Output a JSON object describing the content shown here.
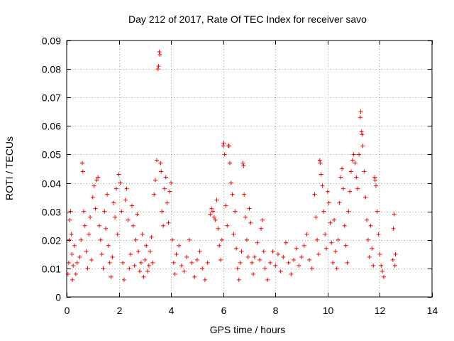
{
  "chart_data": {
    "type": "scatter",
    "title": "Day 212 of 2017, Rate Of TEC Index for receiver savo",
    "xlabel": "GPS time / hours",
    "ylabel": "ROTI / TECUs",
    "xlim": [
      0,
      14
    ],
    "ylim": [
      0,
      0.09
    ],
    "x_ticks": [
      0,
      2,
      4,
      6,
      8,
      10,
      12,
      14
    ],
    "y_ticks": [
      0,
      0.01,
      0.02,
      0.03,
      0.04,
      0.05,
      0.06,
      0.07,
      0.08,
      0.09
    ],
    "x_tick_labels": [
      "0",
      "2",
      "4",
      "6",
      "8",
      "10",
      "12",
      "14"
    ],
    "y_tick_labels": [
      "0",
      "0.01",
      "0.02",
      "0.03",
      "0.04",
      "0.05",
      "0.06",
      "0.07",
      "0.08",
      "0.09"
    ],
    "grid": true,
    "marker": "+",
    "marker_color": "#ff0000",
    "series": [
      {
        "name": "ROTI",
        "points": [
          [
            0.05,
            0.008
          ],
          [
            0.08,
            0.012
          ],
          [
            0.1,
            0.02
          ],
          [
            0.12,
            0.027
          ],
          [
            0.15,
            0.03
          ],
          [
            0.18,
            0.022
          ],
          [
            0.2,
            0.015
          ],
          [
            0.22,
            0.006
          ],
          [
            0.25,
            0.011
          ],
          [
            0.3,
            0.018
          ],
          [
            0.35,
            0.008
          ],
          [
            0.4,
            0.012
          ],
          [
            0.5,
            0.014
          ],
          [
            0.55,
            0.02
          ],
          [
            0.6,
            0.047
          ],
          [
            0.62,
            0.044
          ],
          [
            0.65,
            0.03
          ],
          [
            0.7,
            0.025
          ],
          [
            0.75,
            0.016
          ],
          [
            0.8,
            0.01
          ],
          [
            0.85,
            0.022
          ],
          [
            0.9,
            0.028
          ],
          [
            0.95,
            0.013
          ],
          [
            1.0,
            0.035
          ],
          [
            1.05,
            0.039
          ],
          [
            1.1,
            0.031
          ],
          [
            1.15,
            0.041
          ],
          [
            1.2,
            0.042
          ],
          [
            1.25,
            0.025
          ],
          [
            1.3,
            0.02
          ],
          [
            1.35,
            0.015
          ],
          [
            1.4,
            0.01
          ],
          [
            1.45,
            0.03
          ],
          [
            1.5,
            0.024
          ],
          [
            1.55,
            0.036
          ],
          [
            1.6,
            0.018
          ],
          [
            1.65,
            0.012
          ],
          [
            1.7,
            0.007
          ],
          [
            1.75,
            0.014
          ],
          [
            1.8,
            0.033
          ],
          [
            1.85,
            0.028
          ],
          [
            1.9,
            0.038
          ],
          [
            1.95,
            0.022
          ],
          [
            2.0,
            0.043
          ],
          [
            2.05,
            0.04
          ],
          [
            2.1,
            0.03
          ],
          [
            2.15,
            0.012
          ],
          [
            2.2,
            0.006
          ],
          [
            2.25,
            0.034
          ],
          [
            2.3,
            0.038
          ],
          [
            2.35,
            0.027
          ],
          [
            2.4,
            0.01
          ],
          [
            2.45,
            0.015
          ],
          [
            2.5,
            0.032
          ],
          [
            2.55,
            0.025
          ],
          [
            2.6,
            0.011
          ],
          [
            2.65,
            0.02
          ],
          [
            2.7,
            0.029
          ],
          [
            2.75,
            0.016
          ],
          [
            2.8,
            0.009
          ],
          [
            2.85,
            0.012
          ],
          [
            2.9,
            0.022
          ],
          [
            2.95,
            0.007
          ],
          [
            3.0,
            0.013
          ],
          [
            3.05,
            0.018
          ],
          [
            3.1,
            0.009
          ],
          [
            3.15,
            0.011
          ],
          [
            3.2,
            0.016
          ],
          [
            3.25,
            0.021
          ],
          [
            3.3,
            0.012
          ],
          [
            3.35,
            0.036
          ],
          [
            3.4,
            0.041
          ],
          [
            3.45,
            0.048
          ],
          [
            3.5,
            0.08
          ],
          [
            3.52,
            0.081
          ],
          [
            3.55,
            0.086
          ],
          [
            3.57,
            0.085
          ],
          [
            3.6,
            0.047
          ],
          [
            3.62,
            0.044
          ],
          [
            3.65,
            0.03
          ],
          [
            3.7,
            0.025
          ],
          [
            3.75,
            0.038
          ],
          [
            3.8,
            0.042
          ],
          [
            3.85,
            0.033
          ],
          [
            3.9,
            0.026
          ],
          [
            3.95,
            0.037
          ],
          [
            4.0,
            0.04
          ],
          [
            4.05,
            0.02
          ],
          [
            4.1,
            0.012
          ],
          [
            4.15,
            0.008
          ],
          [
            4.2,
            0.015
          ],
          [
            4.3,
            0.018
          ],
          [
            4.4,
            0.011
          ],
          [
            4.5,
            0.009
          ],
          [
            4.6,
            0.014
          ],
          [
            4.7,
            0.02
          ],
          [
            4.8,
            0.012
          ],
          [
            4.9,
            0.007
          ],
          [
            5.0,
            0.013
          ],
          [
            5.1,
            0.016
          ],
          [
            5.2,
            0.01
          ],
          [
            5.3,
            0.006
          ],
          [
            5.4,
            0.012
          ],
          [
            5.5,
            0.029
          ],
          [
            5.55,
            0.031
          ],
          [
            5.6,
            0.03
          ],
          [
            5.65,
            0.028
          ],
          [
            5.7,
            0.027
          ],
          [
            5.75,
            0.034
          ],
          [
            5.8,
            0.024
          ],
          [
            5.85,
            0.018
          ],
          [
            5.9,
            0.013
          ],
          [
            5.95,
            0.02
          ],
          [
            6.0,
            0.053
          ],
          [
            6.02,
            0.054
          ],
          [
            6.05,
            0.05
          ],
          [
            6.1,
            0.032
          ],
          [
            6.15,
            0.025
          ],
          [
            6.2,
            0.053
          ],
          [
            6.22,
            0.053
          ],
          [
            6.25,
            0.047
          ],
          [
            6.3,
            0.04
          ],
          [
            6.35,
            0.036
          ],
          [
            6.4,
            0.022
          ],
          [
            6.45,
            0.03
          ],
          [
            6.5,
            0.017
          ],
          [
            6.55,
            0.01
          ],
          [
            6.6,
            0.006
          ],
          [
            6.65,
            0.012
          ],
          [
            6.7,
            0.016
          ],
          [
            6.75,
            0.047
          ],
          [
            6.78,
            0.046
          ],
          [
            6.8,
            0.036
          ],
          [
            6.85,
            0.028
          ],
          [
            6.9,
            0.02
          ],
          [
            6.95,
            0.014
          ],
          [
            7.0,
            0.031
          ],
          [
            7.05,
            0.026
          ],
          [
            7.1,
            0.012
          ],
          [
            7.15,
            0.008
          ],
          [
            7.2,
            0.014
          ],
          [
            7.3,
            0.019
          ],
          [
            7.4,
            0.013
          ],
          [
            7.45,
            0.024
          ],
          [
            7.5,
            0.027
          ],
          [
            7.55,
            0.016
          ],
          [
            7.6,
            0.01
          ],
          [
            7.7,
            0.006
          ],
          [
            7.8,
            0.012
          ],
          [
            7.9,
            0.016
          ],
          [
            8.0,
            0.011
          ],
          [
            8.1,
            0.015
          ],
          [
            8.2,
            0.009
          ],
          [
            8.3,
            0.014
          ],
          [
            8.4,
            0.019
          ],
          [
            8.5,
            0.012
          ],
          [
            8.6,
            0.008
          ],
          [
            8.7,
            0.013
          ],
          [
            8.8,
            0.017
          ],
          [
            8.9,
            0.011
          ],
          [
            9.0,
            0.014
          ],
          [
            9.1,
            0.018
          ],
          [
            9.2,
            0.022
          ],
          [
            9.3,
            0.013
          ],
          [
            9.4,
            0.01
          ],
          [
            9.5,
            0.036
          ],
          [
            9.55,
            0.028
          ],
          [
            9.6,
            0.02
          ],
          [
            9.65,
            0.015
          ],
          [
            9.7,
            0.048
          ],
          [
            9.72,
            0.047
          ],
          [
            9.75,
            0.043
          ],
          [
            9.8,
            0.039
          ],
          [
            9.85,
            0.03
          ],
          [
            9.9,
            0.022
          ],
          [
            9.95,
            0.017
          ],
          [
            10.0,
            0.037
          ],
          [
            10.05,
            0.033
          ],
          [
            10.1,
            0.026
          ],
          [
            10.15,
            0.019
          ],
          [
            10.2,
            0.012
          ],
          [
            10.25,
            0.027
          ],
          [
            10.3,
            0.016
          ],
          [
            10.35,
            0.01
          ],
          [
            10.4,
            0.02
          ],
          [
            10.45,
            0.033
          ],
          [
            10.5,
            0.042
          ],
          [
            10.55,
            0.045
          ],
          [
            10.6,
            0.038
          ],
          [
            10.65,
            0.025
          ],
          [
            10.7,
            0.018
          ],
          [
            10.75,
            0.012
          ],
          [
            10.8,
            0.03
          ],
          [
            10.85,
            0.037
          ],
          [
            10.9,
            0.044
          ],
          [
            10.95,
            0.048
          ],
          [
            11.0,
            0.05
          ],
          [
            11.05,
            0.047
          ],
          [
            11.1,
            0.042
          ],
          [
            11.15,
            0.038
          ],
          [
            11.2,
            0.05
          ],
          [
            11.25,
            0.063
          ],
          [
            11.27,
            0.065
          ],
          [
            11.3,
            0.058
          ],
          [
            11.32,
            0.057
          ],
          [
            11.35,
            0.053
          ],
          [
            11.4,
            0.044
          ],
          [
            11.45,
            0.035
          ],
          [
            11.5,
            0.027
          ],
          [
            11.55,
            0.02
          ],
          [
            11.6,
            0.014
          ],
          [
            11.65,
            0.025
          ],
          [
            11.7,
            0.017
          ],
          [
            11.75,
            0.011
          ],
          [
            11.8,
            0.042
          ],
          [
            11.82,
            0.041
          ],
          [
            11.85,
            0.039
          ],
          [
            11.9,
            0.03
          ],
          [
            11.95,
            0.022
          ],
          [
            12.0,
            0.015
          ],
          [
            12.05,
            0.011
          ],
          [
            12.1,
            0.009
          ],
          [
            12.15,
            0.007
          ],
          [
            12.5,
            0.013
          ],
          [
            12.52,
            0.024
          ],
          [
            12.55,
            0.029
          ],
          [
            12.58,
            0.011
          ],
          [
            12.6,
            0.015
          ]
        ]
      }
    ]
  }
}
